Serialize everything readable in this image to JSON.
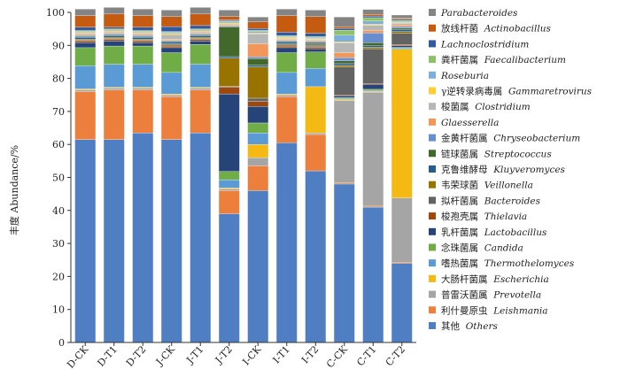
{
  "chart_data": {
    "type": "bar",
    "stacked": true,
    "ylabel": "丰度 Abundance/%",
    "ylim": [
      0,
      100
    ],
    "yticks": [
      0,
      10,
      20,
      30,
      40,
      50,
      60,
      70,
      80,
      90,
      100
    ],
    "categories": [
      "D-CK",
      "D-T1",
      "D-T2",
      "J-CK",
      "J-T1",
      "J-T2",
      "I-CK",
      "I-T1",
      "I-T2",
      "C-CK",
      "C-T1",
      "C-T2"
    ],
    "legend_position": "right",
    "series": [
      {
        "cn": "其他",
        "lat": "Others",
        "color": "#4f7fc2",
        "values": [
          61.5,
          61.5,
          63.5,
          61.5,
          63.5,
          39.0,
          46.0,
          60.5,
          52.0,
          48.0,
          41.0,
          24.0
        ]
      },
      {
        "cn": "利什曼原虫",
        "lat": "Leishmania",
        "color": "#ed7f3c",
        "values": [
          14.5,
          15.0,
          13.0,
          13.0,
          13.0,
          7.0,
          7.5,
          14.0,
          11.0,
          0.3,
          0.3,
          0.3
        ]
      },
      {
        "cn": "普雷沃菌属",
        "lat": "Prevotella",
        "color": "#a5a5a5",
        "values": [
          0.5,
          0.5,
          0.5,
          0.5,
          0.5,
          0.5,
          2.5,
          0.5,
          0.5,
          25.0,
          34.5,
          19.5
        ]
      },
      {
        "cn": "大肠杆菌属",
        "lat": "Escherichia",
        "color": "#f5b914",
        "values": [
          0.3,
          0.3,
          0.3,
          0.3,
          0.3,
          0.3,
          4.0,
          0.3,
          14.0,
          0.3,
          0.3,
          45.0
        ]
      },
      {
        "cn": "嗜热菌属",
        "lat": "Thermothelomyces",
        "color": "#5b9bd5",
        "values": [
          7.0,
          7.0,
          7.0,
          6.5,
          7.0,
          2.5,
          3.5,
          6.5,
          5.5,
          0.3,
          0.3,
          0.3
        ]
      },
      {
        "cn": "念珠菌属",
        "lat": "Candida",
        "color": "#70ad47",
        "values": [
          5.5,
          5.5,
          5.5,
          6.0,
          6.0,
          2.5,
          3.0,
          6.0,
          5.0,
          0.3,
          0.3,
          0.3
        ]
      },
      {
        "cn": "乳杆菌属",
        "lat": "Lactobacillus",
        "color": "#264478",
        "values": [
          1.5,
          1.5,
          1.0,
          1.5,
          1.0,
          23.5,
          5.0,
          1.5,
          1.0,
          0.5,
          1.5,
          0.5
        ]
      },
      {
        "cn": "梭孢壳属",
        "lat": "Thielavia",
        "color": "#9e480e",
        "values": [
          0.5,
          0.5,
          0.5,
          0.5,
          0.5,
          2.0,
          1.5,
          0.5,
          0.5,
          0.3,
          0.3,
          0.3
        ]
      },
      {
        "cn": "拟杆菌属",
        "lat": "Bacteroides",
        "color": "#636363",
        "values": [
          0.3,
          0.3,
          0.3,
          0.3,
          0.3,
          0.3,
          1.0,
          0.3,
          0.3,
          8.5,
          10.5,
          3.5
        ]
      },
      {
        "cn": "韦荣球菌",
        "lat": "Veillonella",
        "color": "#997300",
        "values": [
          0.3,
          0.3,
          0.3,
          0.3,
          0.3,
          8.5,
          9.5,
          0.3,
          0.3,
          0.5,
          0.5,
          0.5
        ]
      },
      {
        "cn": "克鲁维酵母",
        "lat": "Kluyveromyces",
        "color": "#255e91",
        "values": [
          0.5,
          0.5,
          0.5,
          0.5,
          0.5,
          0.5,
          0.5,
          0.5,
          0.5,
          0.5,
          0.5,
          0.5
        ]
      },
      {
        "cn": "链球菌属",
        "lat": "Streptococcus",
        "color": "#43682b",
        "values": [
          0.3,
          0.3,
          0.3,
          0.3,
          0.3,
          9.0,
          2.0,
          0.3,
          0.3,
          0.8,
          0.8,
          0.5
        ]
      },
      {
        "cn": "金黄杆菌属",
        "lat": "Chryseobacterium",
        "color": "#698ed0",
        "values": [
          0.3,
          0.3,
          0.3,
          0.3,
          0.3,
          0.3,
          0.5,
          0.3,
          0.3,
          1.0,
          3.0,
          0.5
        ]
      },
      {
        "cn": "",
        "lat": "Glaesserella",
        "color": "#f1975a",
        "values": [
          0.3,
          0.3,
          0.3,
          0.3,
          0.3,
          0.3,
          4.0,
          0.3,
          0.3,
          1.5,
          0.8,
          0.5
        ]
      },
      {
        "cn": "梭菌属",
        "lat": "Clostridium",
        "color": "#b7b7b7",
        "values": [
          0.3,
          0.3,
          0.3,
          1.5,
          0.3,
          0.3,
          3.0,
          0.3,
          0.3,
          3.0,
          1.5,
          0.5
        ]
      },
      {
        "cn": "γ逆转录病毒属",
        "lat": "Gammaretrovirus",
        "color": "#ffcd33",
        "values": [
          0.3,
          0.3,
          0.3,
          0.3,
          0.3,
          0.3,
          0.3,
          0.3,
          0.3,
          0.3,
          0.3,
          0.3
        ]
      },
      {
        "cn": "",
        "lat": "Roseburia",
        "color": "#7cafdd",
        "values": [
          0.3,
          0.3,
          0.3,
          0.3,
          0.3,
          0.3,
          0.5,
          0.3,
          0.3,
          2.0,
          1.0,
          0.3
        ]
      },
      {
        "cn": "粪杆菌属",
        "lat": "Faecalibacterium",
        "color": "#8cc168",
        "values": [
          0.3,
          0.3,
          0.3,
          0.3,
          0.3,
          0.3,
          0.3,
          0.3,
          0.3,
          1.5,
          1.0,
          0.3
        ]
      },
      {
        "cn": "",
        "lat": "Lachnoclostridium",
        "color": "#335aa1",
        "values": [
          1.0,
          0.5,
          1.0,
          1.5,
          1.0,
          0.3,
          0.5,
          1.0,
          1.0,
          0.5,
          0.5,
          0.3
        ]
      },
      {
        "cn": "放线杆菌",
        "lat": "Actinobacillus",
        "color": "#c55a11",
        "values": [
          3.5,
          4.0,
          3.5,
          3.0,
          3.5,
          1.0,
          2.0,
          5.0,
          5.0,
          0.5,
          0.5,
          0.3
        ]
      },
      {
        "cn": "",
        "lat": "Parabacteroides",
        "color": "#848484",
        "values": [
          2.0,
          2.0,
          2.0,
          2.0,
          2.0,
          2.0,
          1.5,
          2.0,
          2.0,
          3.0,
          1.5,
          1.0
        ]
      }
    ]
  }
}
